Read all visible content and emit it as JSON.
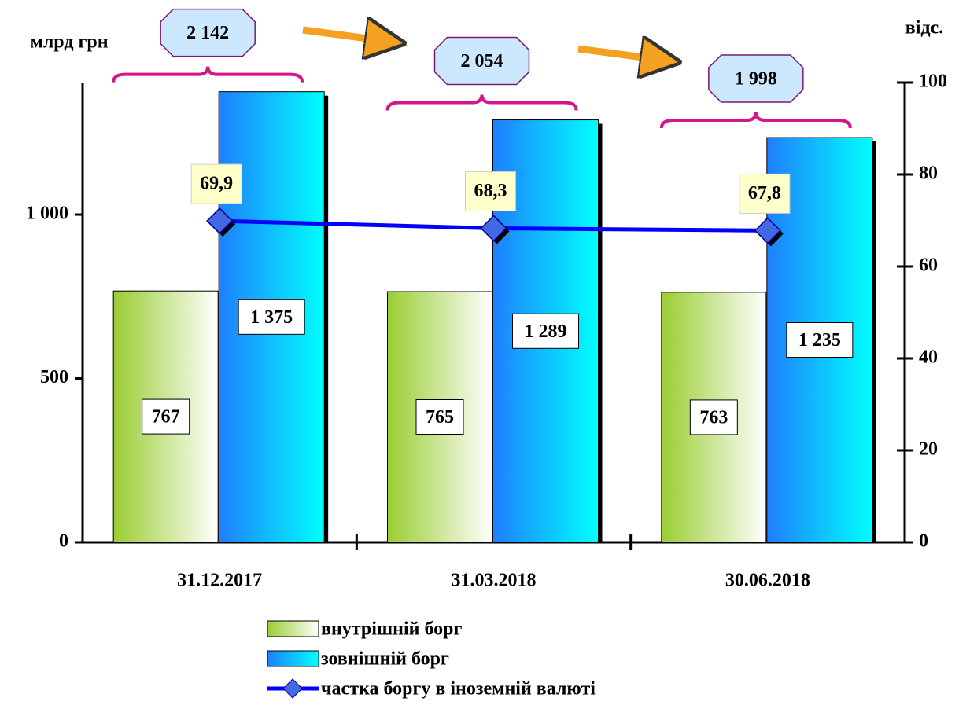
{
  "chart_data": {
    "type": "bar",
    "y_label": "млрд грн",
    "y2_label": "відс.",
    "categories": [
      "31.12.2017",
      "31.03.2018",
      "30.06.2018"
    ],
    "series": [
      {
        "name": "внутрішній борг",
        "color": "#9acd32",
        "values": [
          767,
          765,
          763
        ],
        "value_labels": [
          "767",
          "765",
          "763"
        ]
      },
      {
        "name": "зовнішній борг",
        "color": "#1e90ff",
        "values": [
          1375,
          1289,
          1235
        ],
        "value_labels": [
          "1 375",
          "1 289",
          "1 235"
        ]
      },
      {
        "name": "частка боргу в іноземній валюті",
        "type": "line",
        "axis": "y2",
        "color": "#0000ff",
        "values": [
          69.9,
          68.3,
          67.8
        ],
        "value_labels": [
          "69,9",
          "68,3",
          "67,8"
        ]
      }
    ],
    "annotations": [
      "2 142",
      "2 054",
      "1 998"
    ],
    "ylim": [
      0,
      1403
    ],
    "yticks": [
      0,
      500,
      {
        "value": 1000,
        "label": "1 000"
      }
    ],
    "y2lim": [
      0,
      100
    ],
    "y2ticks": [
      0,
      20,
      40,
      60,
      80,
      100
    ]
  }
}
